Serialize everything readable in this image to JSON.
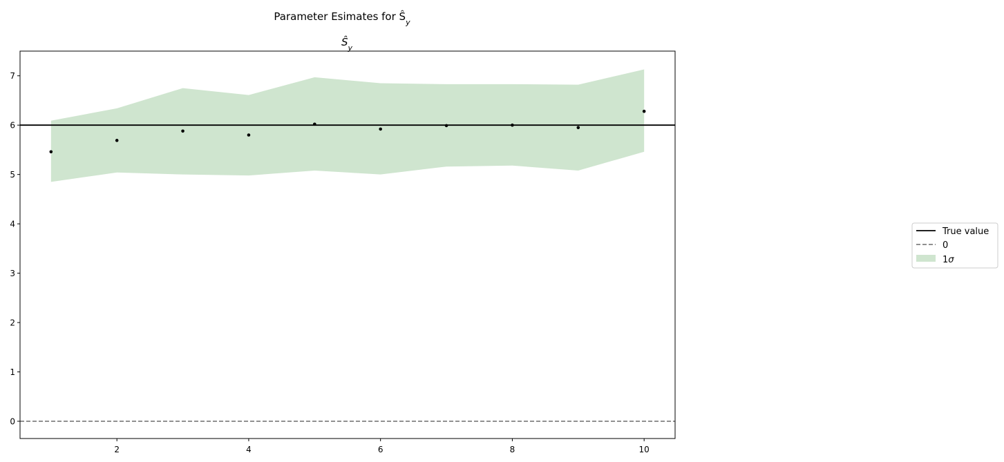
{
  "chart_data": {
    "type": "line",
    "suptitle": "Parameter Esimates for Ŝ",
    "suptitle_sub": "y",
    "title": "Ŝ",
    "title_sub": "y",
    "xlabel": "",
    "ylabel": "",
    "xlim": [
      0.53,
      10.47
    ],
    "ylim": [
      -0.35,
      7.5
    ],
    "x": [
      1,
      2,
      3,
      4,
      5,
      6,
      7,
      8,
      9,
      10
    ],
    "xticks": [
      "2",
      "4",
      "6",
      "8",
      "10"
    ],
    "xtick_values": [
      2,
      4,
      6,
      8,
      10
    ],
    "yticks": [
      "0",
      "1",
      "2",
      "3",
      "4",
      "5",
      "6",
      "7"
    ],
    "ytick_values": [
      0,
      1,
      2,
      3,
      4,
      5,
      6,
      7
    ],
    "estimates": [
      5.46,
      5.69,
      5.88,
      5.8,
      6.02,
      5.92,
      5.99,
      6.0,
      5.95,
      6.28
    ],
    "band_upper": [
      6.09,
      6.34,
      6.75,
      6.61,
      6.97,
      6.85,
      6.83,
      6.83,
      6.82,
      7.13
    ],
    "band_lower": [
      4.85,
      5.04,
      5.0,
      4.98,
      5.08,
      5.0,
      5.16,
      5.18,
      5.08,
      5.46
    ],
    "true_value": 6,
    "zero_line": 0,
    "colors": {
      "band": "#cfe5cf",
      "true_line": "#000000",
      "zero_line": "#808080",
      "points": "#000000"
    },
    "grid": false,
    "legend_position": "right",
    "legend": [
      {
        "label": "True value",
        "style": "solid-line"
      },
      {
        "label": "0",
        "style": "dashed-line"
      },
      {
        "label": "1",
        "label_sym": "σ",
        "style": "patch"
      }
    ]
  }
}
